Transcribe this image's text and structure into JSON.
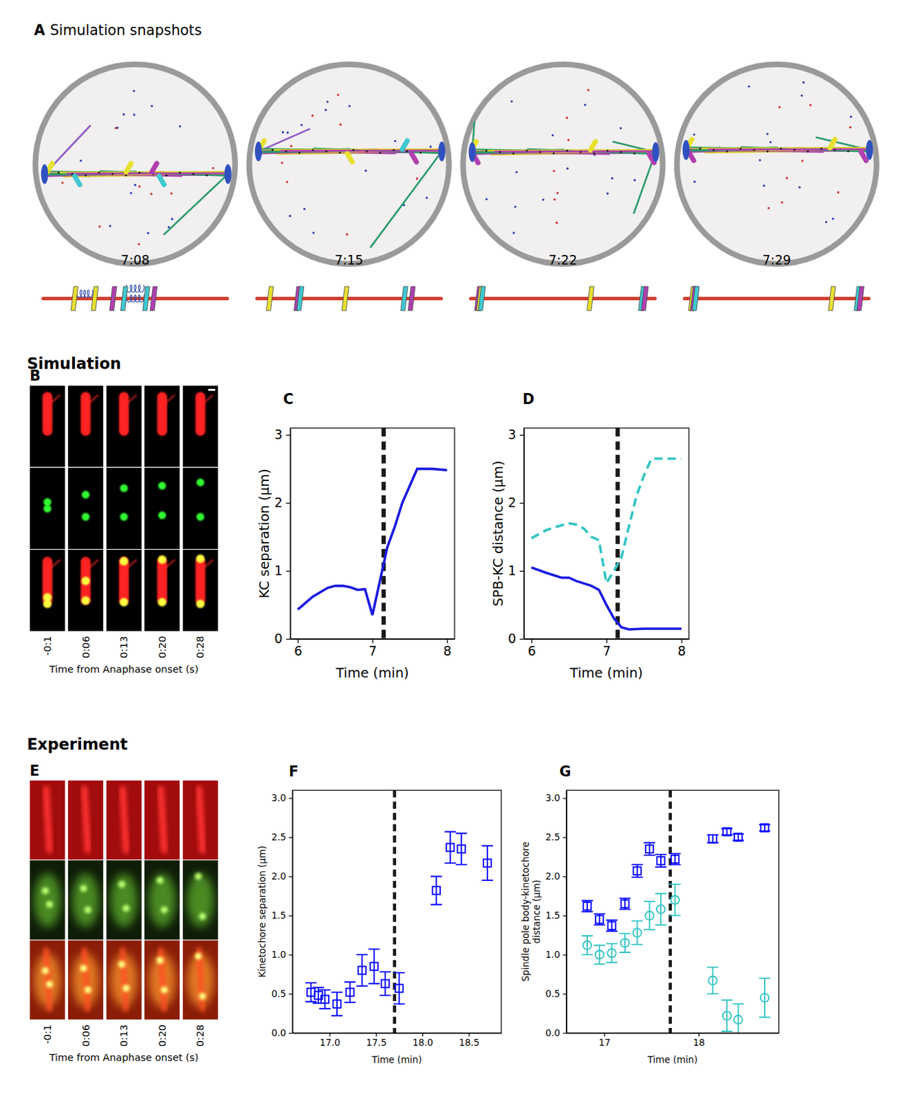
{
  "panel_labels": [
    "A",
    "B",
    "C",
    "D",
    "E",
    "F",
    "G"
  ],
  "snapshots": {
    "title": "Simulation snapshots",
    "times": [
      "7:08",
      "7:15",
      "7:22",
      "7:29"
    ]
  },
  "section_titles": [
    "Simulation",
    "Experiment"
  ],
  "microscopy": [
    {
      "times": [
        "-0:1",
        "0:06",
        "0:13",
        "0:20",
        "0:28"
      ],
      "caption": "Time from Anaphase onset (s)"
    },
    {
      "times": [
        "-0:1",
        "0:06",
        "0:13",
        "0:20",
        "0:28"
      ],
      "caption": "Time from Anaphase onset (s)"
    }
  ],
  "chart_data": [
    {
      "type": "line",
      "x_label": "Time (min)",
      "y_label": "KC separation (μm)",
      "xlim": [
        5.9,
        8.1
      ],
      "ylim": [
        0,
        3.1
      ],
      "xticks": [
        6,
        7,
        8
      ],
      "yticks": [
        0,
        1,
        2,
        3
      ],
      "vline": 7.15,
      "series": [
        {
          "color": "#1a1ae0",
          "line_style": "solid",
          "x": [
            6.0,
            6.2,
            6.4,
            6.5,
            6.6,
            6.7,
            6.8,
            6.9,
            7.0,
            7.1,
            7.2,
            7.3,
            7.4,
            7.5,
            7.6,
            7.8,
            8.0
          ],
          "values": [
            0.43,
            0.62,
            0.75,
            0.78,
            0.78,
            0.76,
            0.72,
            0.73,
            0.35,
            0.85,
            1.35,
            1.65,
            2.0,
            2.25,
            2.5,
            2.5,
            2.48
          ]
        }
      ]
    },
    {
      "type": "line",
      "x_label": "Time (min)",
      "y_label": "SPB-KC distance (μm)",
      "xlim": [
        5.9,
        8.1
      ],
      "ylim": [
        0,
        3.1
      ],
      "xticks": [
        6,
        7,
        8
      ],
      "yticks": [
        0,
        1,
        2,
        3
      ],
      "vline": 7.15,
      "series": [
        {
          "color": "#1a1ae0",
          "line_style": "solid",
          "x": [
            6.0,
            6.2,
            6.4,
            6.5,
            6.6,
            6.8,
            6.9,
            7.0,
            7.1,
            7.2,
            7.3,
            7.5,
            8.0
          ],
          "values": [
            1.05,
            0.97,
            0.9,
            0.9,
            0.85,
            0.78,
            0.72,
            0.5,
            0.3,
            0.17,
            0.14,
            0.15,
            0.15
          ]
        },
        {
          "color": "#33c4c4",
          "line_style": "dashed",
          "x": [
            6.0,
            6.2,
            6.4,
            6.5,
            6.6,
            6.7,
            6.8,
            6.9,
            7.0,
            7.1,
            7.2,
            7.3,
            7.4,
            7.5,
            7.6,
            8.0
          ],
          "values": [
            1.48,
            1.6,
            1.67,
            1.7,
            1.68,
            1.62,
            1.5,
            1.45,
            0.82,
            1.0,
            1.2,
            1.65,
            2.1,
            2.4,
            2.65,
            2.65
          ]
        }
      ]
    },
    {
      "type": "scatter",
      "marker": "square",
      "x_label": "Time (min)",
      "y_label": "Kinetochore separation (μm)",
      "xlim": [
        16.6,
        18.85
      ],
      "ylim": [
        0,
        3.1
      ],
      "xticks": [
        {
          "value": 17,
          "label": "17.0"
        },
        {
          "value": 17.5,
          "label": "17.5"
        },
        {
          "value": 18,
          "label": "18.0"
        },
        {
          "value": 18.5,
          "label": "18.5"
        }
      ],
      "yticks": [
        {
          "value": 0,
          "label": "0.0"
        },
        {
          "value": 0.5,
          "label": "0.5"
        },
        {
          "value": 1,
          "label": "1.0"
        },
        {
          "value": 1.5,
          "label": "1.5"
        },
        {
          "value": 2,
          "label": "2.0"
        },
        {
          "value": 2.5,
          "label": "2.5"
        },
        {
          "value": 3,
          "label": "3.0"
        }
      ],
      "vline": 17.7,
      "series": [
        {
          "color": "#0000ff",
          "marker": "square",
          "x": [
            16.8,
            16.88,
            16.95,
            17.08,
            17.22,
            17.35,
            17.48,
            17.6,
            17.75,
            18.15,
            18.3,
            18.42,
            18.7
          ],
          "values": [
            0.52,
            0.48,
            0.43,
            0.37,
            0.52,
            0.8,
            0.85,
            0.63,
            0.57,
            1.82,
            2.37,
            2.35,
            2.17
          ],
          "errors": [
            0.12,
            0.1,
            0.12,
            0.15,
            0.13,
            0.2,
            0.22,
            0.15,
            0.2,
            0.18,
            0.2,
            0.2,
            0.22
          ]
        }
      ]
    },
    {
      "type": "scatter",
      "x_label": "Time (min)",
      "y_label": "Spindle pole body-kinetochore distance (μm)",
      "xlim": [
        16.6,
        18.85
      ],
      "ylim": [
        0,
        3.1
      ],
      "xticks": [
        17,
        18
      ],
      "yticks": [
        {
          "value": 0,
          "label": "0.0"
        },
        {
          "value": 0.5,
          "label": "0.5"
        },
        {
          "value": 1,
          "label": "1.0"
        },
        {
          "value": 1.5,
          "label": "1.5"
        },
        {
          "value": 2,
          "label": "2.0"
        },
        {
          "value": 2.5,
          "label": "2.5"
        },
        {
          "value": 3,
          "label": "3.0"
        }
      ],
      "vline": 17.7,
      "series": [
        {
          "color": "#0000ff",
          "marker": "square",
          "x": [
            16.82,
            16.95,
            17.08,
            17.22,
            17.35,
            17.48,
            17.6,
            17.75,
            18.15,
            18.3,
            18.42,
            18.7
          ],
          "values": [
            1.62,
            1.45,
            1.37,
            1.65,
            2.07,
            2.35,
            2.2,
            2.22,
            2.48,
            2.57,
            2.5,
            2.62
          ],
          "errors": [
            0.07,
            0.07,
            0.07,
            0.07,
            0.08,
            0.08,
            0.08,
            0.07,
            0.05,
            0.04,
            0.04,
            0.04
          ]
        },
        {
          "color": "#33c4c4",
          "marker": "circle",
          "x": [
            16.82,
            16.95,
            17.08,
            17.22,
            17.35,
            17.48,
            17.6,
            17.75,
            18.15,
            18.3,
            18.42,
            18.7
          ],
          "values": [
            1.12,
            1.0,
            1.02,
            1.15,
            1.28,
            1.5,
            1.58,
            1.7,
            0.67,
            0.22,
            0.17,
            0.45
          ],
          "errors": [
            0.12,
            0.12,
            0.12,
            0.12,
            0.15,
            0.18,
            0.2,
            0.2,
            0.17,
            0.2,
            0.2,
            0.25
          ]
        }
      ]
    }
  ]
}
